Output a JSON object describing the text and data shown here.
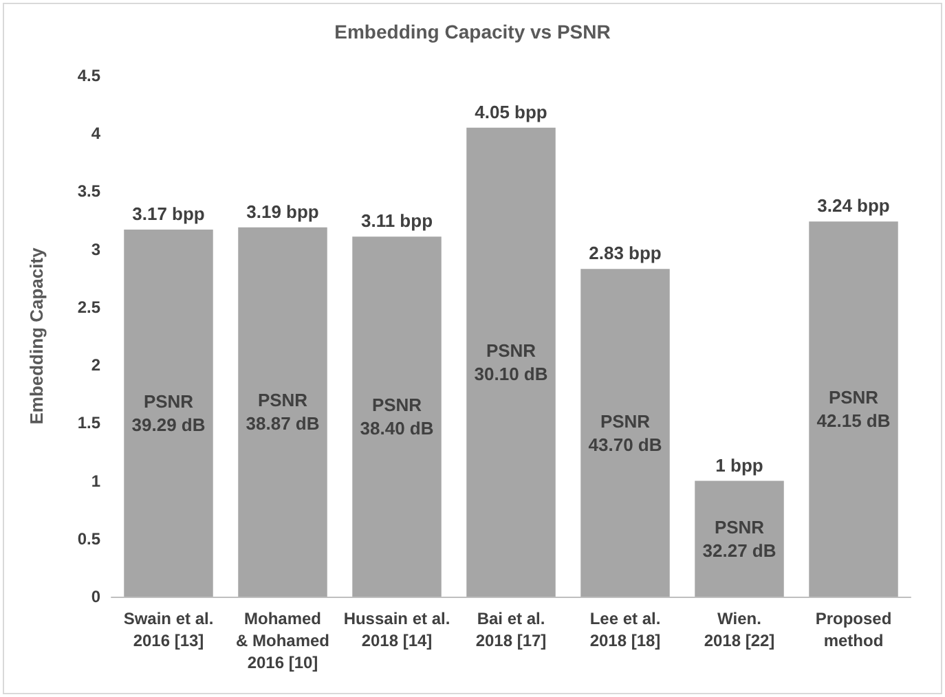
{
  "chart_data": {
    "type": "bar",
    "title": "Embedding Capacity vs PSNR",
    "ylabel": "Embedding Capacity",
    "categories": [
      "Swain et al.\n2016 [13]",
      "Mohamed\n& Mohamed\n2016 [10]",
      "Hussain et al.\n2018 [14]",
      "Bai et al.\n2018 [17]",
      "Lee et al.\n2018 [18]",
      "Wien.\n2018 [22]",
      "Proposed\nmethod"
    ],
    "values": [
      3.17,
      3.19,
      3.11,
      4.05,
      2.83,
      1,
      3.24
    ],
    "value_labels": [
      "3.17 bpp",
      "3.19 bpp",
      "3.11 bpp",
      "4.05 bpp",
      "2.83 bpp",
      "1 bpp",
      "3.24 bpp"
    ],
    "color": "#a6a6a6",
    "ylim": [
      0,
      4.5
    ],
    "yticks": [
      0,
      0.5,
      1,
      1.5,
      2,
      2.5,
      3,
      3.5,
      4,
      4.5
    ],
    "grid": false,
    "annotations": [
      "PSNR\n39.29 dB",
      "PSNR\n38.87 dB",
      "PSNR\n38.40 dB",
      "PSNR\n30.10 dB",
      "PSNR\n43.70 dB",
      "PSNR\n32.27 dB",
      "PSNR\n42.15 dB"
    ]
  }
}
